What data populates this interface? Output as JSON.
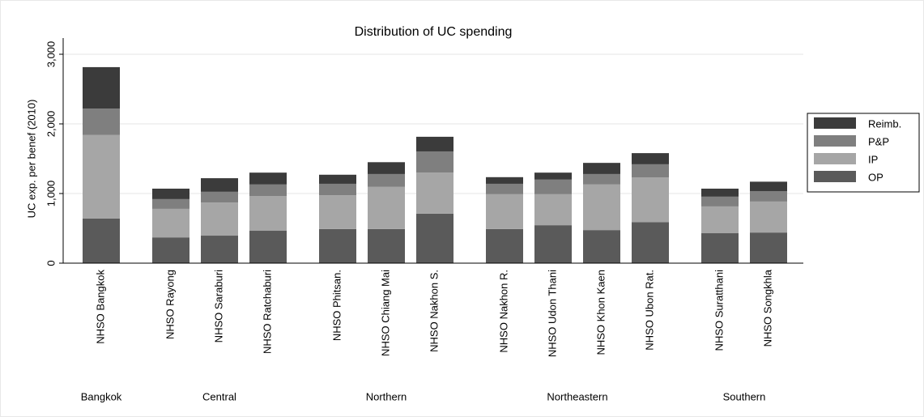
{
  "chart_data": {
    "type": "stacked_bar",
    "title": "Distribution of UC spending",
    "y_label": "UC exp. per benef (2010)",
    "groups": [
      {
        "label": "Bangkok",
        "categories": [
          "NHSO Bangkok"
        ]
      },
      {
        "label": "Central",
        "categories": [
          "NHSO Rayong",
          "NHSO Saraburi",
          "NHSO Ratchaburi"
        ]
      },
      {
        "label": "Northern",
        "categories": [
          "NHSO Phitsan.",
          "NHSO Chiang Mai",
          "NHSO Nakhon S."
        ]
      },
      {
        "label": "Northeastern",
        "categories": [
          "NHSO Nakhon R.",
          "NHSO Udon Thani",
          "NHSO Khon Kaen",
          "NHSO Ubon Rat."
        ]
      },
      {
        "label": "Southern",
        "categories": [
          "NHSO Suratthani",
          "NHSO Songkhla"
        ]
      }
    ],
    "series": [
      {
        "name": "OP",
        "color": "#5a5a5a",
        "values": [
          640,
          370,
          395,
          465,
          490,
          490,
          710,
          490,
          545,
          475,
          590,
          430,
          440
        ]
      },
      {
        "name": "IP",
        "color": "#a6a6a6",
        "values": [
          1200,
          410,
          475,
          500,
          485,
          605,
          590,
          500,
          445,
          655,
          640,
          385,
          445
        ]
      },
      {
        "name": "P&P",
        "color": "#7f7f7f",
        "values": [
          380,
          140,
          155,
          165,
          165,
          185,
          305,
          150,
          210,
          150,
          190,
          140,
          150
        ]
      },
      {
        "name": "Reimb.",
        "color": "#3b3b3b",
        "values": [
          595,
          150,
          195,
          170,
          130,
          170,
          210,
          95,
          100,
          160,
          160,
          115,
          135
        ]
      }
    ],
    "ylim": [
      0,
      3000
    ],
    "yticks": [
      0,
      {
        "value": 1000,
        "label": "1,000"
      },
      {
        "value": 2000,
        "label": "2,000"
      },
      {
        "value": 3000,
        "label": "3,000"
      }
    ],
    "grid": true,
    "legend": "right"
  }
}
